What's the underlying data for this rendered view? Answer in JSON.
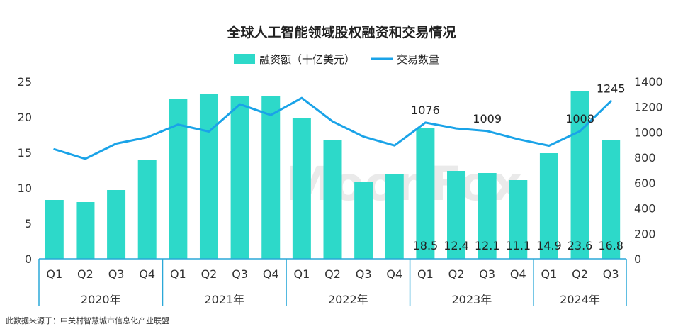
{
  "chart_data": {
    "type": "bar",
    "title": "全球人工智能领域股权融资和交易情况",
    "legend": {
      "position": "top-center"
    },
    "categories": [
      "Q1",
      "Q2",
      "Q3",
      "Q4",
      "Q1",
      "Q2",
      "Q3",
      "Q4",
      "Q1",
      "Q2",
      "Q3",
      "Q4",
      "Q1",
      "Q2",
      "Q3",
      "Q4",
      "Q1",
      "Q2",
      "Q3"
    ],
    "groups": [
      {
        "label": "2020年",
        "count": 4
      },
      {
        "label": "2021年",
        "count": 4
      },
      {
        "label": "2022年",
        "count": 4
      },
      {
        "label": "2023年",
        "count": 4
      },
      {
        "label": "2024年",
        "count": 3
      }
    ],
    "series": [
      {
        "name": "融资额（十亿美元）",
        "type": "bar",
        "axis": "left",
        "color": "#2dd9c9",
        "values": [
          8.3,
          8.0,
          9.7,
          13.9,
          22.6,
          23.2,
          23.0,
          23.0,
          19.9,
          16.8,
          10.8,
          11.9,
          18.5,
          12.4,
          12.1,
          11.1,
          14.9,
          23.6,
          16.8
        ],
        "data_labels": [
          "",
          "",
          "",
          "",
          "",
          "",
          "",
          "",
          "",
          "",
          "",
          "",
          "18.5",
          "12.4",
          "12.1",
          "11.1",
          "14.9",
          "23.6",
          "16.8"
        ]
      },
      {
        "name": "交易数量",
        "type": "line",
        "axis": "right",
        "color": "#1aa3e8",
        "values": [
          865,
          790,
          910,
          960,
          1060,
          1005,
          1220,
          1135,
          1270,
          1085,
          965,
          895,
          1076,
          1030,
          1009,
          945,
          893,
          1008,
          1245
        ],
        "data_labels": [
          "",
          "",
          "",
          "",
          "",
          "",
          "",
          "",
          "",
          "",
          "",
          "",
          "1076",
          "",
          "1009",
          "",
          "",
          "1008",
          "1245"
        ]
      }
    ],
    "y_left": {
      "min": 0,
      "max": 25,
      "ticks": [
        "0",
        "5",
        "10",
        "15",
        "20",
        "25"
      ]
    },
    "y_right": {
      "min": 0,
      "max": 1400,
      "ticks": [
        "0",
        "200",
        "400",
        "600",
        "800",
        "1000",
        "1200",
        "1400"
      ]
    },
    "grid": false,
    "watermark": "MoonFox"
  },
  "footer": {
    "source": "此数据来源于：中关村智慧城市信息化产业联盟"
  }
}
